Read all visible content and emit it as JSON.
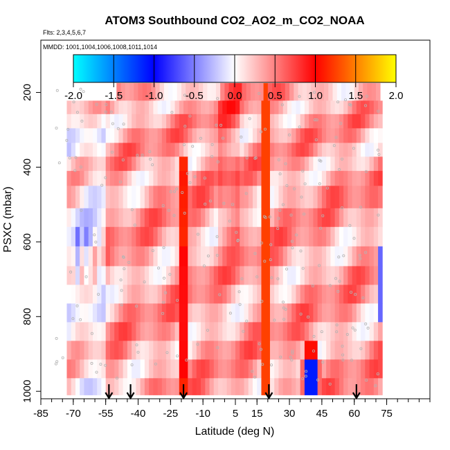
{
  "chart_data": {
    "type": "heatmap",
    "title": "ATOM3 Southbound CO2_AO2_m_CO2_NOAA",
    "subtitle": "Flts: 2,3,4,5,6,7",
    "annotation": "MMDD: 1001,1004,1006,1008,1011,1014",
    "xlabel": "Latitude (deg N)",
    "ylabel": "PSXC (mbar)",
    "xlim": [
      -85,
      95
    ],
    "ylim": [
      1020,
      60
    ],
    "x_ticks": [
      -85,
      -70,
      -55,
      -40,
      -25,
      -10,
      5,
      15,
      30,
      45,
      60,
      75
    ],
    "y_ticks": [
      200,
      400,
      600,
      800,
      1000
    ],
    "colorbar": {
      "min": -2.0,
      "max": 2.0,
      "ticks": [
        "-2.0",
        "-1.5",
        "-1.0",
        "-0.5",
        "0.0",
        "0.5",
        "1.0",
        "1.5",
        "2.0"
      ],
      "colors": [
        "#00ffff",
        "#0080ff",
        "#0000ff",
        "#ffffff",
        "#ff0000",
        "#ff8000",
        "#ffff00"
      ]
    },
    "profile_arrows_lat": [
      -53.5,
      -43.5,
      -19,
      20.5,
      61
    ],
    "pressure_bands": [
      {
        "p_top": 175,
        "p_bot": 222,
        "lat_min": -50,
        "lat_max": 72
      },
      {
        "p_top": 222,
        "p_bot": 258,
        "lat_min": -73,
        "lat_max": 72
      },
      {
        "p_top": 258,
        "p_bot": 296,
        "lat_min": -73,
        "lat_max": 72
      },
      {
        "p_top": 296,
        "p_bot": 335,
        "lat_min": -73,
        "lat_max": 72
      },
      {
        "p_top": 335,
        "p_bot": 372,
        "lat_min": -73,
        "lat_max": 72
      },
      {
        "p_top": 372,
        "p_bot": 410,
        "lat_min": -73,
        "lat_max": 72
      },
      {
        "p_top": 410,
        "p_bot": 450,
        "lat_min": -73,
        "lat_max": 72
      },
      {
        "p_top": 450,
        "p_bot": 510,
        "lat_min": -73,
        "lat_max": 72
      },
      {
        "p_top": 510,
        "p_bot": 560,
        "lat_min": -73,
        "lat_max": 72
      },
      {
        "p_top": 560,
        "p_bot": 612,
        "lat_min": -73,
        "lat_max": 72
      },
      {
        "p_top": 612,
        "p_bot": 665,
        "lat_min": -73,
        "lat_max": 72
      },
      {
        "p_top": 665,
        "p_bot": 715,
        "lat_min": -73,
        "lat_max": 72
      },
      {
        "p_top": 715,
        "p_bot": 765,
        "lat_min": -73,
        "lat_max": 72
      },
      {
        "p_top": 765,
        "p_bot": 815,
        "lat_min": -73,
        "lat_max": 72
      },
      {
        "p_top": 815,
        "p_bot": 865,
        "lat_min": -73,
        "lat_max": 72
      },
      {
        "p_top": 865,
        "p_bot": 915,
        "lat_min": -73,
        "lat_max": 72
      },
      {
        "p_top": 915,
        "p_bot": 965,
        "lat_min": -73,
        "lat_max": 72
      },
      {
        "p_top": 965,
        "p_bot": 1010,
        "lat_min": -73,
        "lat_max": 72
      }
    ]
  }
}
